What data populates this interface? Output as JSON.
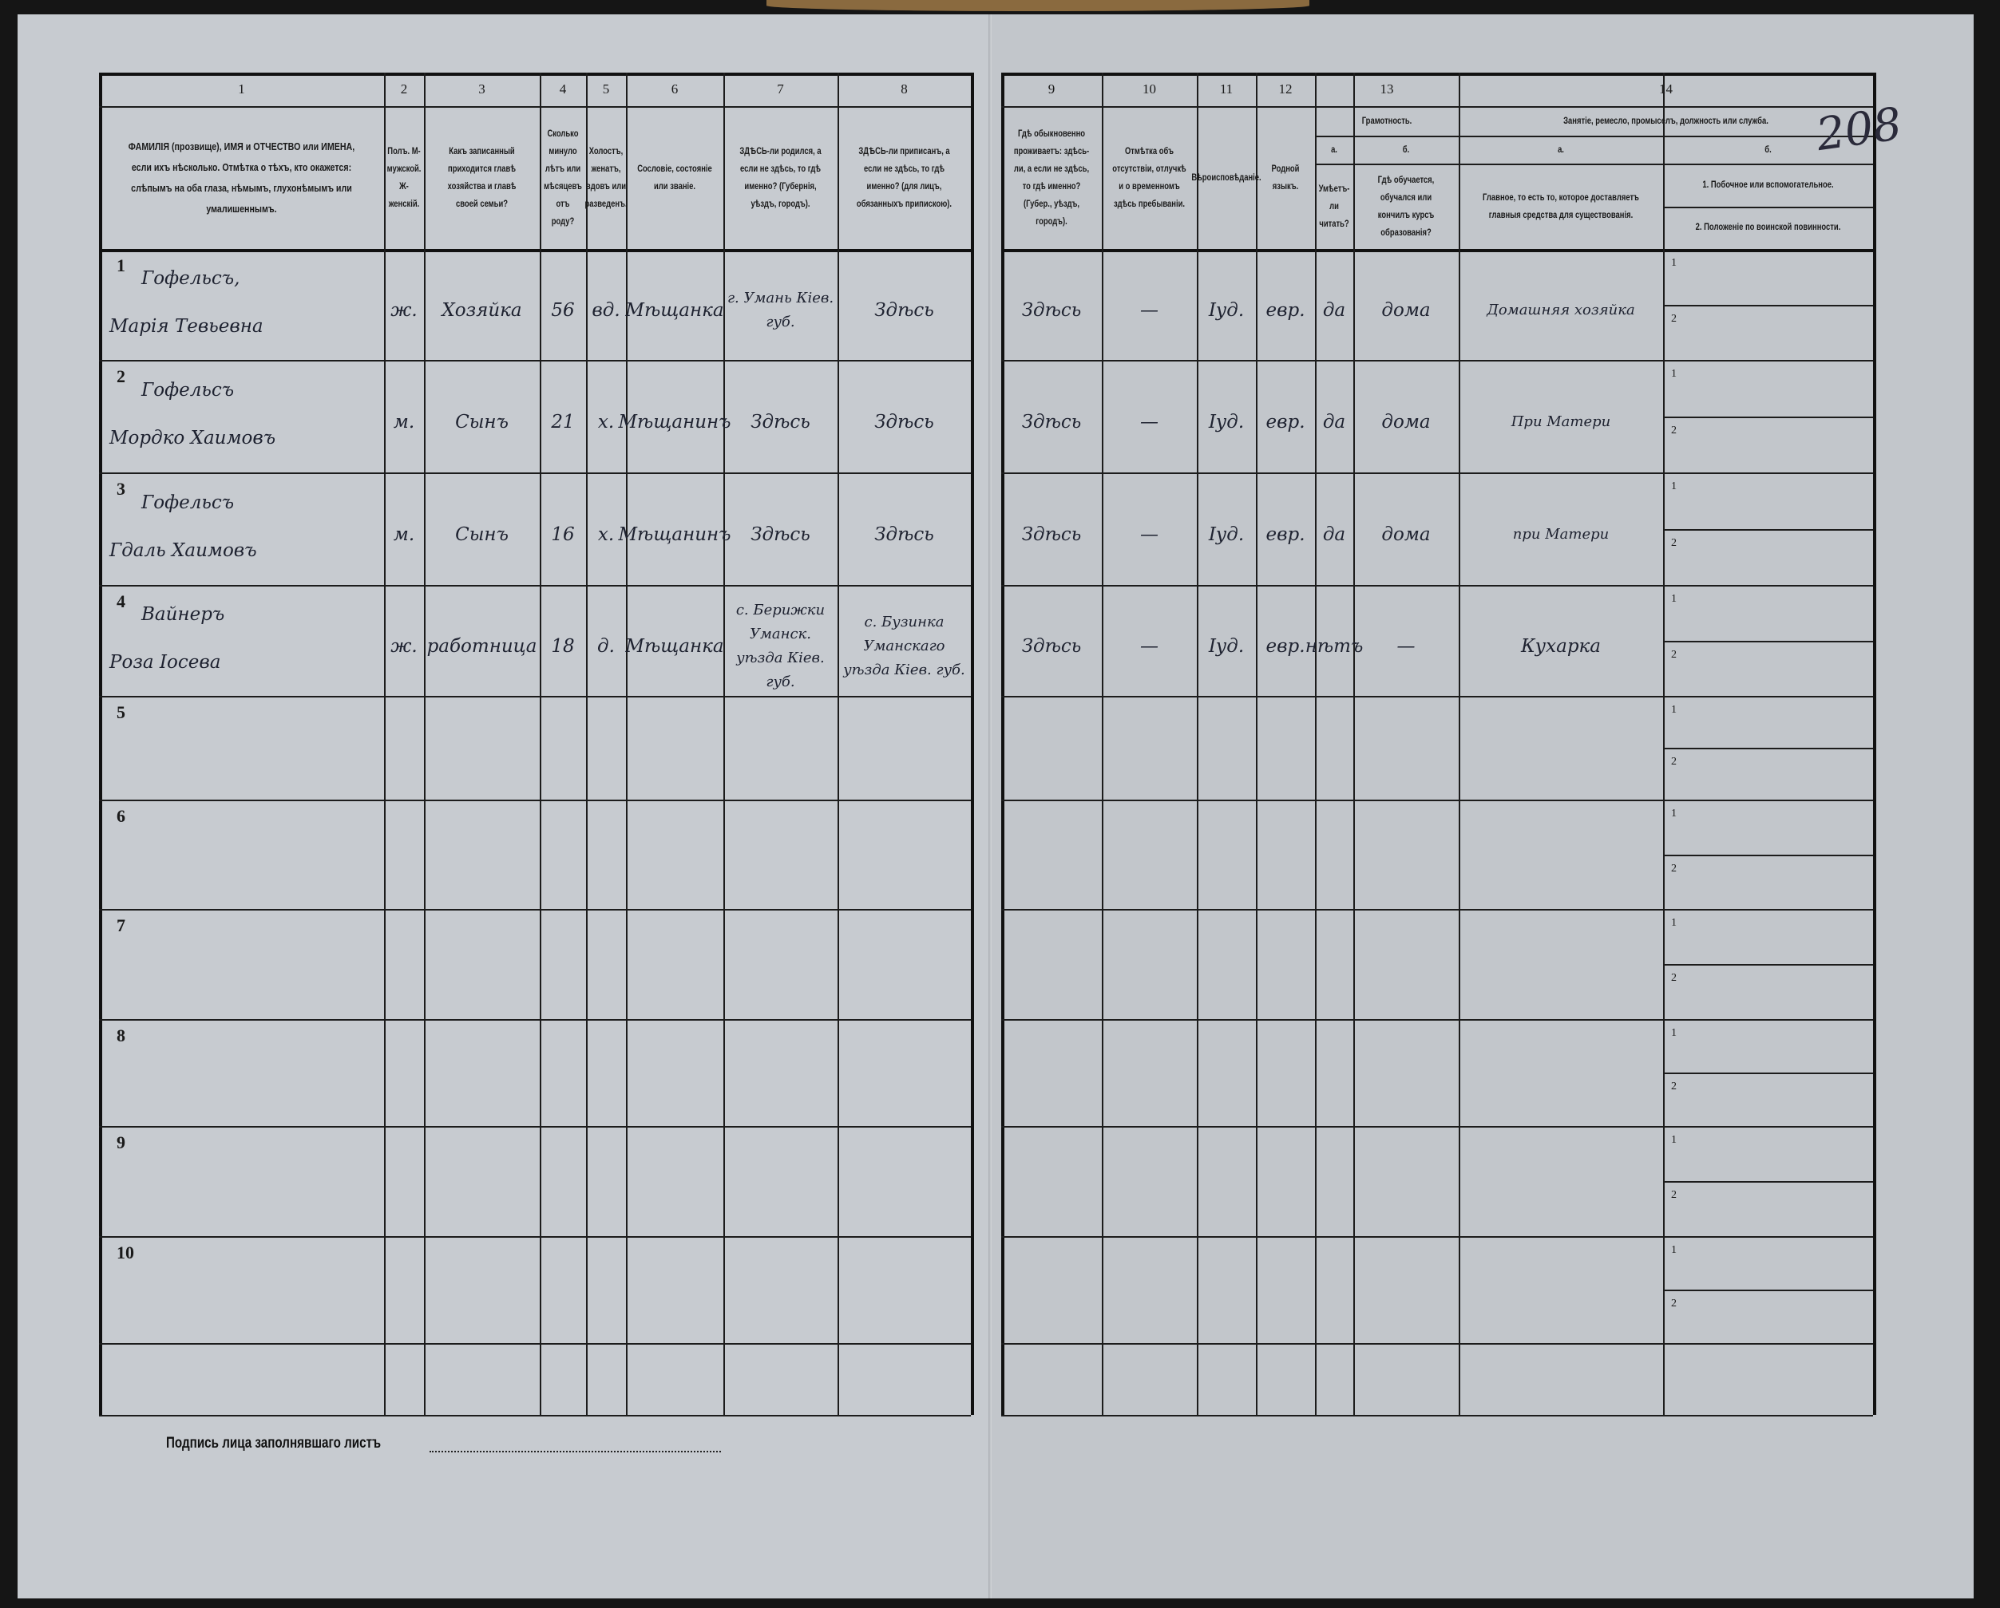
{
  "page_number": "208",
  "columns": [
    {
      "num": "1",
      "header": "ФАМИЛІЯ (прозвище), ИМЯ и ОТЧЕСТВО или ИМЕНА, если ихъ нѣсколько. Отмѣтка о тѣхъ, кто окажется: слѣпымъ на оба глаза, нѣмымъ, глухонѣмымъ или умалишеннымъ."
    },
    {
      "num": "2",
      "header": "Полъ. М-мужской. Ж-женскій."
    },
    {
      "num": "3",
      "header": "Какъ записанный приходится главѣ хозяйства и главѣ своей семьи?"
    },
    {
      "num": "4",
      "header": "Сколько минуло лѣтъ или мѣсяцевъ отъ роду?"
    },
    {
      "num": "5",
      "header": "Холостъ, женатъ, вдовъ или разведенъ."
    },
    {
      "num": "6",
      "header": "Сословіе, состояніе или званіе."
    },
    {
      "num": "7",
      "header": "ЗДѢСЬ-ли родился, а если не здѣсь, то гдѣ именно? (Губернія, уѣздъ, городъ)."
    },
    {
      "num": "8",
      "header": "ЗДѢСЬ-ли приписанъ, а если не здѣсь, то гдѣ именно? (для лицъ, обязанныхъ припискою)."
    },
    {
      "num": "9",
      "header": "Гдѣ обыкновенно проживаетъ: здѣсь-ли, а если не здѣсь, то гдѣ именно? (Губер., уѣздъ, городъ)."
    },
    {
      "num": "10",
      "header": "Отмѣтка объ отсутствіи, отлучкѣ и о временномъ здѣсь пребываніи."
    },
    {
      "num": "11",
      "header": "Вѣроисповѣданіе."
    },
    {
      "num": "12",
      "header": "Родной языкъ."
    },
    {
      "num": "13",
      "group": "Грамотность.",
      "sub_a": "а.",
      "sub_b": "б.",
      "header_a": "Умѣетъ-ли читать?",
      "header_b": "Гдѣ обучается, обучался или кончилъ курсъ образованія?"
    },
    {
      "num": "14",
      "group": "Занятіе, ремесло, промыселъ, должность или служба.",
      "sub_a": "а.",
      "sub_b": "б.",
      "header_a": "Главное, то есть то, которое доставляетъ главныя средства для существованія.",
      "header_b1": "1. Побочное или вспомогательное.",
      "header_b2": "2. Положеніе по воинской повинности."
    }
  ],
  "rows": [
    {
      "n": "1",
      "surname": "Гофельсъ,",
      "name": "Марія Тевьевна",
      "sex": "ж.",
      "relation": "Хозяйка",
      "age": "56",
      "marital": "вд.",
      "estate": "Мѣщанка",
      "born": "г. Умань Кiев. губ.",
      "registered": "Здѣсь",
      "resides": "Здѣсь",
      "absence": "—",
      "religion": "Iуд.",
      "language": "евр.",
      "literate": "да",
      "education": "дома",
      "occupation": "Домашняя хозяйка"
    },
    {
      "n": "2",
      "surname": "Гофельсъ",
      "name": "Мордко Хаимовъ",
      "sex": "м.",
      "relation": "Сынъ",
      "age": "21",
      "marital": "х.",
      "estate": "Мѣщанинъ",
      "born": "Здѣсь",
      "registered": "Здѣсь",
      "resides": "Здѣсь",
      "absence": "—",
      "religion": "Iуд.",
      "language": "евр.",
      "literate": "да",
      "education": "дома",
      "occupation": "При Матери"
    },
    {
      "n": "3",
      "surname": "Гофельсъ",
      "name": "Гдаль Хаимовъ",
      "sex": "м.",
      "relation": "Сынъ",
      "age": "16",
      "marital": "х.",
      "estate": "Мѣщанинъ",
      "born": "Здѣсь",
      "registered": "Здѣсь",
      "resides": "Здѣсь",
      "absence": "—",
      "religion": "Iуд.",
      "language": "евр.",
      "literate": "да",
      "education": "дома",
      "occupation": "при Матери"
    },
    {
      "n": "4",
      "surname": "Вайнеръ",
      "name": "Роза Iосева",
      "sex": "ж.",
      "relation": "работница",
      "age": "18",
      "marital": "д.",
      "estate": "Мѣщанка",
      "born": "с. Берижки Уманск. уѣзда Кiев. губ.",
      "registered": "с. Бузинка Уманскаго уѣзда Кiев. губ.",
      "resides": "Здѣсь",
      "absence": "—",
      "religion": "Iуд.",
      "language": "евр.",
      "literate": "нѣтъ",
      "education": "—",
      "occupation": "Кухарка"
    },
    {
      "n": "5"
    },
    {
      "n": "6"
    },
    {
      "n": "7"
    },
    {
      "n": "8"
    },
    {
      "n": "9"
    },
    {
      "n": "10"
    }
  ],
  "sub_line_labels": [
    "1",
    "2"
  ],
  "signature_label": "Подпись лица заполнявшаго листъ"
}
